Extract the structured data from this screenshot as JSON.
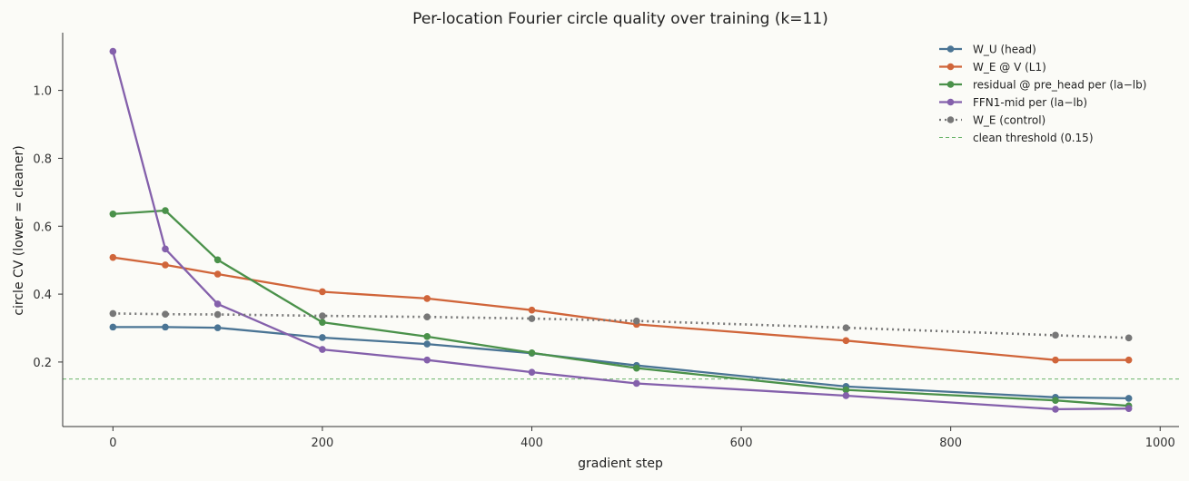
{
  "chart_data": {
    "type": "line",
    "title": "Per-location Fourier circle quality over training (k=11)",
    "xlabel": "gradient step",
    "ylabel": "circle CV (lower = cleaner)",
    "xlim": [
      -48,
      1018
    ],
    "ylim": [
      0.01,
      1.17
    ],
    "xticks": [
      0,
      200,
      400,
      600,
      800,
      1000
    ],
    "yticks": [
      0.2,
      0.4,
      0.6,
      0.8,
      1.0
    ],
    "xtick_labels": [
      "0",
      "200",
      "400",
      "600",
      "800",
      "1000"
    ],
    "ytick_labels": [
      "0.2",
      "0.4",
      "0.6",
      "0.8",
      "1.0"
    ],
    "grid": false,
    "legend_position": "top-right",
    "series": [
      {
        "name": "W_U (head)",
        "color": "#4a7494",
        "style": "solid",
        "marker": "circle",
        "x": [
          0,
          50,
          100,
          200,
          300,
          400,
          500,
          700,
          900,
          970
        ],
        "y": [
          0.303,
          0.303,
          0.301,
          0.272,
          0.253,
          0.226,
          0.19,
          0.128,
          0.096,
          0.093
        ]
      },
      {
        "name": "W_E @ V (L1)",
        "color": "#d0653a",
        "style": "solid",
        "marker": "circle",
        "x": [
          0,
          50,
          100,
          200,
          300,
          400,
          500,
          700,
          900,
          970
        ],
        "y": [
          0.508,
          0.486,
          0.459,
          0.407,
          0.387,
          0.353,
          0.311,
          0.263,
          0.206,
          0.206
        ]
      },
      {
        "name": "residual @ pre_head per (la−lb)",
        "color": "#4a914a",
        "style": "solid",
        "marker": "circle",
        "x": [
          0,
          50,
          100,
          200,
          300,
          400,
          500,
          700,
          900,
          970
        ],
        "y": [
          0.636,
          0.646,
          0.501,
          0.317,
          0.275,
          0.227,
          0.182,
          0.118,
          0.087,
          0.071
        ]
      },
      {
        "name": "FFN1-mid per (la−lb)",
        "color": "#8460ab",
        "style": "solid",
        "marker": "circle",
        "x": [
          0,
          50,
          100,
          200,
          300,
          400,
          500,
          700,
          900,
          970
        ],
        "y": [
          1.115,
          0.533,
          0.371,
          0.237,
          0.206,
          0.17,
          0.137,
          0.101,
          0.061,
          0.063
        ]
      },
      {
        "name": "W_E (control)",
        "color": "#777777",
        "style": "dotted",
        "marker": "circle",
        "x": [
          0,
          50,
          100,
          200,
          300,
          400,
          500,
          700,
          900,
          970
        ],
        "y": [
          0.343,
          0.341,
          0.34,
          0.336,
          0.333,
          0.328,
          0.321,
          0.301,
          0.279,
          0.271
        ]
      }
    ],
    "hlines": [
      {
        "name": "clean threshold (0.15)",
        "y": 0.15,
        "color": "#6ab46a",
        "style": "dashed"
      }
    ]
  }
}
